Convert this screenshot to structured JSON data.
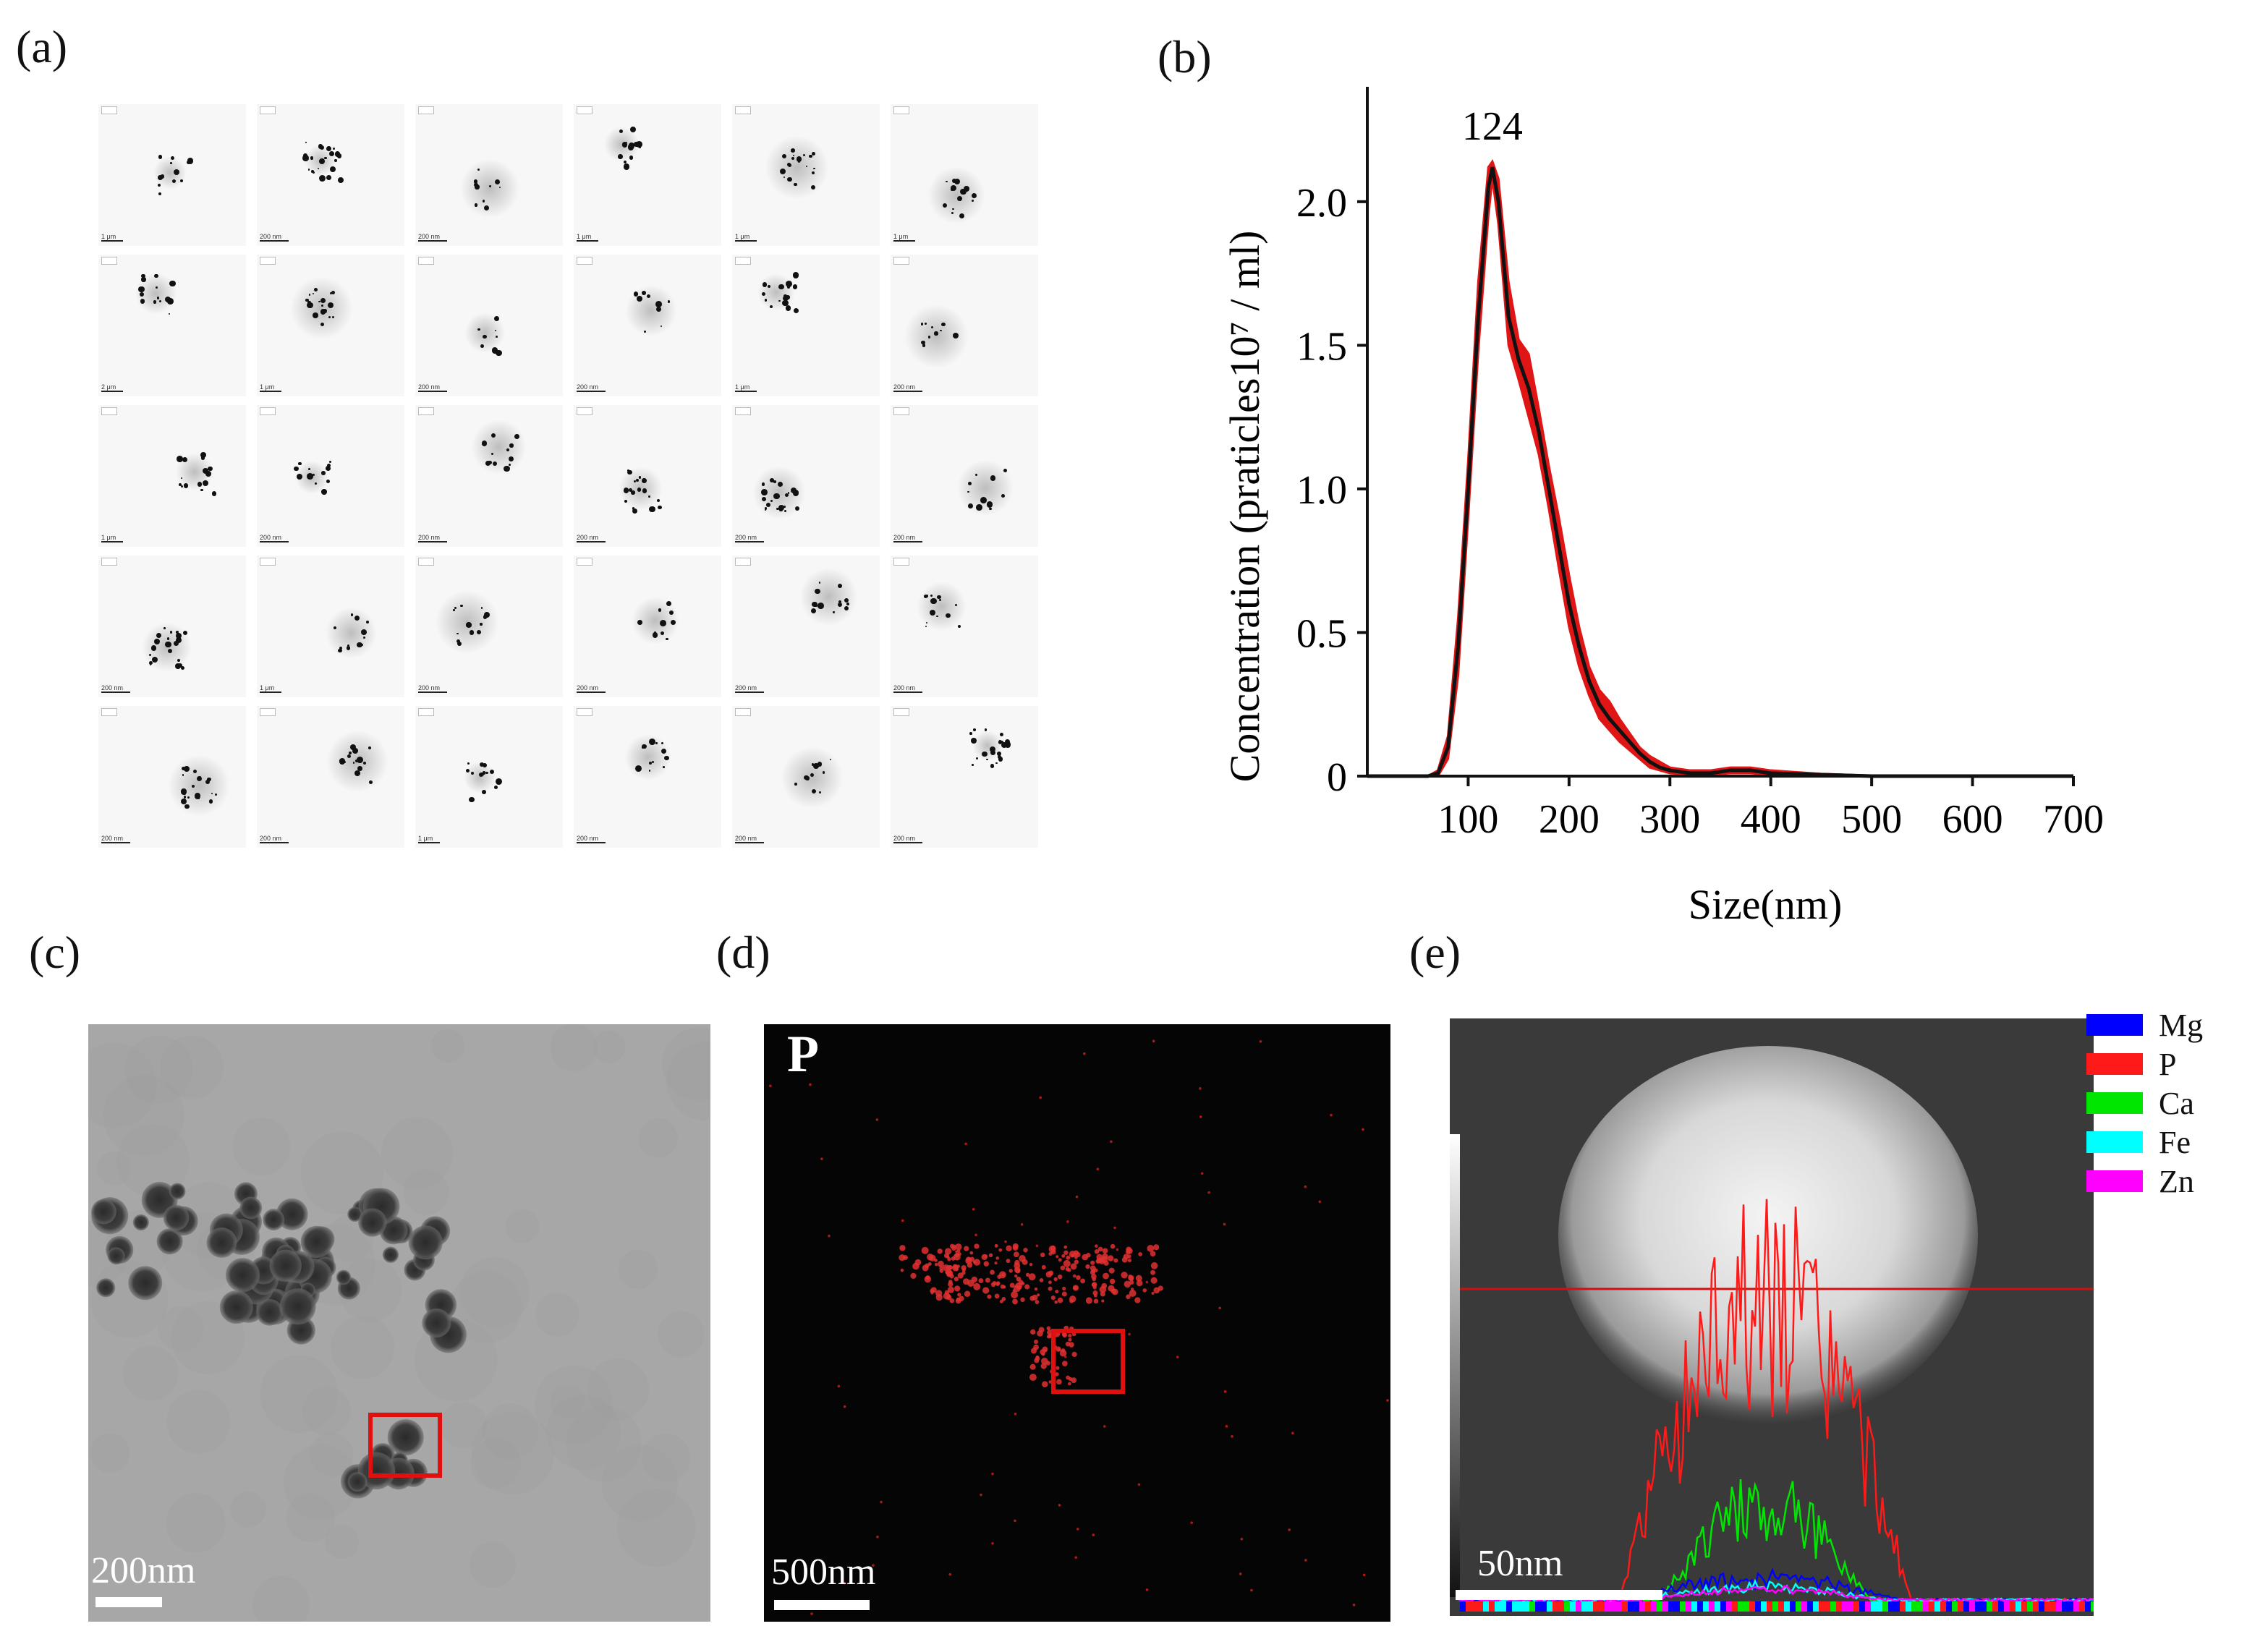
{
  "panels": {
    "a": {
      "label": "(a)"
    },
    "b": {
      "label": "(b)"
    },
    "c": {
      "label": "(c)",
      "scale_label": "200nm"
    },
    "d": {
      "label": "(d)",
      "scale_label": "500nm",
      "element_label": "P"
    },
    "e": {
      "label": "(e)",
      "scale_label": "50nm"
    }
  },
  "tem_grid": {
    "rows": 5,
    "cols": 6,
    "scale_labels": [
      [
        "1 μm",
        "200 nm",
        "200 nm",
        "1 μm",
        "1 μm",
        "1 μm"
      ],
      [
        "2 μm",
        "1 μm",
        "200 nm",
        "200 nm",
        "1 μm",
        "200 nm"
      ],
      [
        "1 μm",
        "200 nm",
        "200 nm",
        "200 nm",
        "200 nm",
        "200 nm"
      ],
      [
        "200 nm",
        "1 μm",
        "200 nm",
        "200 nm",
        "200 nm",
        "200 nm"
      ],
      [
        "200 nm",
        "200 nm",
        "1 μm",
        "200 nm",
        "200 nm",
        "200 nm"
      ]
    ]
  },
  "chart_data": {
    "type": "line",
    "xlabel": "Size(nm)",
    "ylabel": "Concentration  (praticles10⁷ / ml)",
    "xlim": [
      0,
      700
    ],
    "ylim": [
      0,
      2.4
    ],
    "xticks": [
      100,
      200,
      300,
      400,
      500,
      600,
      700
    ],
    "yticks": [
      0,
      0.5,
      1.0,
      1.5,
      2.0
    ],
    "ytick_labels": [
      "0",
      "0.5",
      "1.0",
      "1.5",
      "2.0"
    ],
    "peak_annotation": {
      "text": "124",
      "x": 124,
      "y": 2.12
    },
    "series": [
      {
        "color": "#111111",
        "x": [
          0,
          60,
          70,
          80,
          90,
          100,
          110,
          120,
          124,
          130,
          140,
          150,
          160,
          170,
          180,
          190,
          200,
          210,
          220,
          230,
          240,
          250,
          260,
          270,
          280,
          290,
          300,
          320,
          340,
          360,
          380,
          400,
          450,
          500,
          600,
          700
        ],
        "y": [
          0,
          0,
          0.01,
          0.1,
          0.45,
          1.0,
          1.6,
          2.05,
          2.12,
          2.0,
          1.6,
          1.45,
          1.35,
          1.2,
          1.0,
          0.8,
          0.6,
          0.45,
          0.33,
          0.25,
          0.2,
          0.16,
          0.12,
          0.08,
          0.05,
          0.03,
          0.02,
          0.01,
          0.01,
          0.02,
          0.02,
          0.01,
          0.005,
          0,
          0,
          0
        ]
      }
    ],
    "error_band": {
      "color": "#e01515",
      "upper": [
        0,
        0,
        0.02,
        0.14,
        0.55,
        1.1,
        1.72,
        2.12,
        2.14,
        2.08,
        1.72,
        1.52,
        1.47,
        1.28,
        1.08,
        0.9,
        0.7,
        0.52,
        0.38,
        0.3,
        0.26,
        0.2,
        0.15,
        0.1,
        0.07,
        0.05,
        0.03,
        0.02,
        0.02,
        0.03,
        0.03,
        0.02,
        0.008,
        0.002,
        0,
        0
      ],
      "lower": [
        0,
        0,
        0.0,
        0.06,
        0.35,
        0.9,
        1.48,
        1.95,
        2.08,
        1.92,
        1.5,
        1.38,
        1.25,
        1.12,
        0.93,
        0.72,
        0.52,
        0.38,
        0.28,
        0.2,
        0.16,
        0.12,
        0.09,
        0.06,
        0.03,
        0.02,
        0.01,
        0.005,
        0.005,
        0.01,
        0.01,
        0.005,
        0.002,
        0,
        0,
        0
      ]
    }
  },
  "legend": [
    {
      "name": "Mg",
      "color": "#0000ff"
    },
    {
      "name": "P",
      "color": "#ff1a1a"
    },
    {
      "name": "Ca",
      "color": "#00e600"
    },
    {
      "name": "Fe",
      "color": "#00ffff"
    },
    {
      "name": "Zn",
      "color": "#ff00ff"
    }
  ]
}
